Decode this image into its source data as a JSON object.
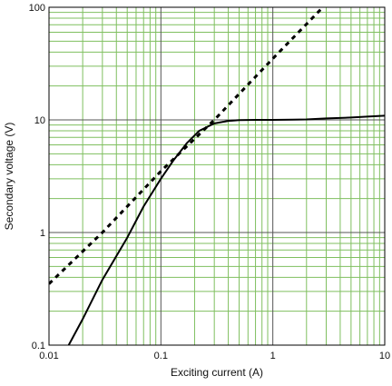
{
  "chart_data": {
    "type": "line",
    "title": "",
    "xlabel": "Exciting current (A)",
    "ylabel": "Secondary voltage (V)",
    "xscale": "log",
    "yscale": "log",
    "xlim": [
      0.01,
      10
    ],
    "ylim": [
      0.1,
      100
    ],
    "xticks": [
      0.01,
      0.1,
      1,
      10
    ],
    "xtick_labels": [
      "0.01",
      "0.1",
      "1",
      "10"
    ],
    "yticks": [
      0.1,
      1,
      10,
      100
    ],
    "ytick_labels": [
      "0.1",
      "1",
      "10",
      "100"
    ],
    "grid": true,
    "legend": "none",
    "colors": {
      "minor_grid": "#7fbf5f",
      "major_grid": "#555555",
      "series": "#000000"
    },
    "series": [
      {
        "style": "solid",
        "x": [
          0.015,
          0.02,
          0.03,
          0.05,
          0.07,
          0.1,
          0.13,
          0.17,
          0.22,
          0.3,
          0.4,
          0.5,
          0.7,
          1,
          1.5,
          2,
          3,
          5,
          7,
          10
        ],
        "y": [
          0.1,
          0.17,
          0.38,
          0.9,
          1.7,
          3.0,
          4.4,
          6.2,
          8.0,
          9.3,
          9.8,
          9.95,
          10.0,
          10.0,
          10.05,
          10.1,
          10.3,
          10.5,
          10.7,
          10.9
        ]
      },
      {
        "style": "dotted",
        "x": [
          0.01,
          0.03,
          0.1,
          0.3,
          1,
          2.8
        ],
        "y": [
          0.35,
          1.0,
          3.5,
          10.0,
          35.0,
          100.0
        ]
      }
    ]
  }
}
